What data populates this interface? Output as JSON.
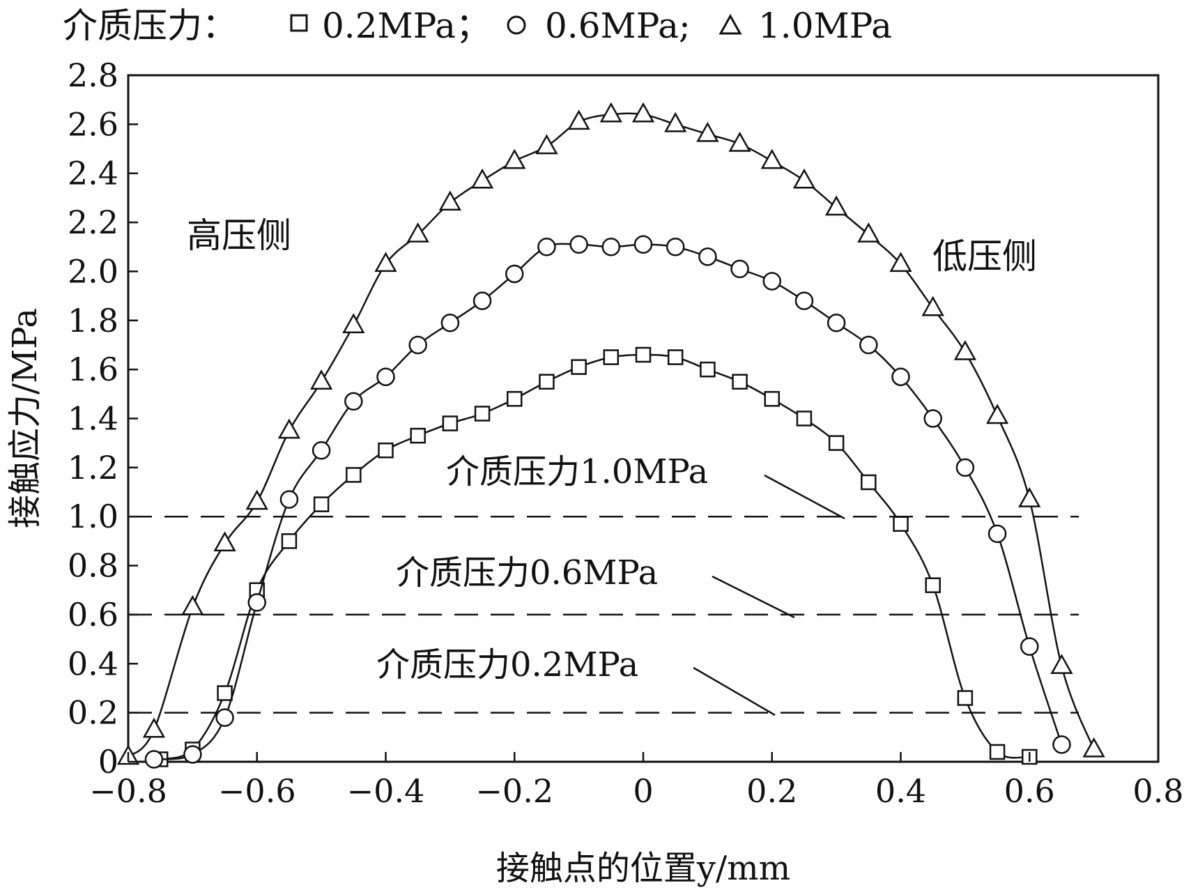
{
  "chart_data": {
    "type": "line",
    "title": "",
    "legend": {
      "prefix": "介质压力：",
      "placement": "top",
      "entries": [
        {
          "marker": "square",
          "text": "0.2MPa；"
        },
        {
          "marker": "circle",
          "text": "0.6MPa;"
        },
        {
          "marker": "triangle",
          "text": "1.0MPa"
        }
      ]
    },
    "xlabel": "接触点的位置y/mm",
    "ylabel": "接触应力/MPa",
    "xlim": [
      -0.8,
      0.8
    ],
    "ylim": [
      0,
      2.8
    ],
    "xticks": [
      -0.8,
      -0.6,
      -0.4,
      -0.2,
      0,
      0.2,
      0.4,
      0.6,
      0.8
    ],
    "xtick_labels": [
      "−0.8",
      "−0.6",
      "−0.4",
      "−0.2",
      "0",
      "0.2",
      "0.4",
      "0.6",
      "0.8"
    ],
    "yticks": [
      0,
      0.2,
      0.4,
      0.6,
      0.8,
      1.0,
      1.2,
      1.4,
      1.6,
      1.8,
      2.0,
      2.2,
      2.4,
      2.6,
      2.8
    ],
    "ytick_labels": [
      "0",
      "0.2",
      "0.4",
      "0.6",
      "0.8",
      "1.0",
      "1.2",
      "1.4",
      "1.6",
      "1.8",
      "2.0",
      "2.2",
      "2.4",
      "2.6",
      "2.8"
    ],
    "grid": false,
    "series": [
      {
        "name": "0.2MPa",
        "marker": "square",
        "x": [
          -0.75,
          -0.7,
          -0.65,
          -0.6,
          -0.55,
          -0.5,
          -0.45,
          -0.4,
          -0.35,
          -0.3,
          -0.25,
          -0.2,
          -0.15,
          -0.1,
          -0.05,
          0,
          0.05,
          0.1,
          0.15,
          0.2,
          0.25,
          0.3,
          0.35,
          0.4,
          0.45,
          0.5,
          0.55,
          0.6
        ],
        "y": [
          0.01,
          0.05,
          0.28,
          0.7,
          0.9,
          1.05,
          1.17,
          1.27,
          1.33,
          1.38,
          1.42,
          1.48,
          1.55,
          1.61,
          1.65,
          1.66,
          1.65,
          1.6,
          1.55,
          1.48,
          1.4,
          1.3,
          1.14,
          0.97,
          0.72,
          0.26,
          0.04,
          0.02
        ]
      },
      {
        "name": "0.6MPa",
        "marker": "circle",
        "x": [
          -0.76,
          -0.7,
          -0.65,
          -0.6,
          -0.55,
          -0.5,
          -0.45,
          -0.4,
          -0.35,
          -0.3,
          -0.25,
          -0.2,
          -0.15,
          -0.1,
          -0.05,
          0,
          0.05,
          0.1,
          0.15,
          0.2,
          0.25,
          0.3,
          0.35,
          0.4,
          0.45,
          0.5,
          0.55,
          0.6,
          0.65
        ],
        "y": [
          0.01,
          0.03,
          0.18,
          0.65,
          1.07,
          1.27,
          1.47,
          1.57,
          1.7,
          1.79,
          1.88,
          1.99,
          2.1,
          2.11,
          2.1,
          2.11,
          2.1,
          2.06,
          2.01,
          1.96,
          1.88,
          1.79,
          1.7,
          1.57,
          1.4,
          1.2,
          0.93,
          0.47,
          0.07
        ]
      },
      {
        "name": "1.0MPa",
        "marker": "triangle",
        "x": [
          -0.8,
          -0.76,
          -0.7,
          -0.65,
          -0.6,
          -0.55,
          -0.5,
          -0.45,
          -0.4,
          -0.35,
          -0.3,
          -0.25,
          -0.2,
          -0.15,
          -0.1,
          -0.05,
          0,
          0.05,
          0.1,
          0.15,
          0.2,
          0.25,
          0.3,
          0.35,
          0.4,
          0.45,
          0.5,
          0.55,
          0.6,
          0.65,
          0.7
        ],
        "y": [
          0.02,
          0.13,
          0.63,
          0.89,
          1.06,
          1.35,
          1.55,
          1.78,
          2.03,
          2.15,
          2.28,
          2.37,
          2.45,
          2.51,
          2.61,
          2.64,
          2.64,
          2.6,
          2.56,
          2.52,
          2.45,
          2.37,
          2.26,
          2.15,
          2.03,
          1.85,
          1.67,
          1.41,
          1.07,
          0.39,
          0.05
        ]
      }
    ],
    "reference_lines": [
      {
        "y": 1.0,
        "label": "介质压力1.0MPa"
      },
      {
        "y": 0.6,
        "label": "介质压力0.6MPa"
      },
      {
        "y": 0.2,
        "label": "介质压力0.2MPa"
      }
    ],
    "annotations": [
      {
        "text": "高压侧",
        "near": "upper-left"
      },
      {
        "text": "低压侧",
        "near": "upper-right"
      }
    ]
  }
}
